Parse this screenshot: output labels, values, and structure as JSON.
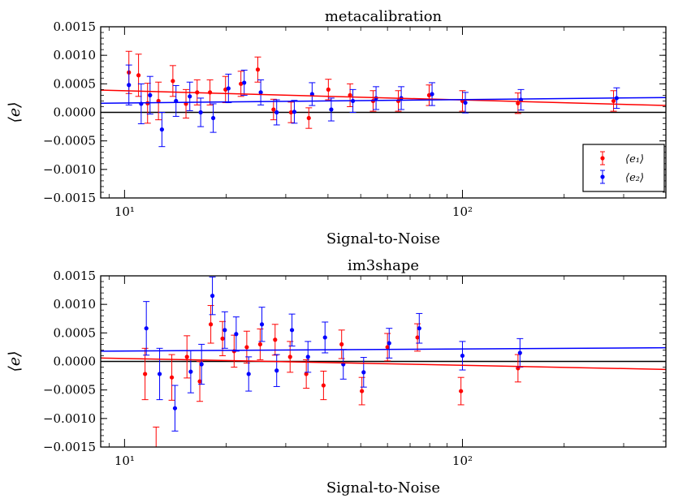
{
  "chart_data": [
    {
      "type": "scatter",
      "title": "metacalibration",
      "xlabel": "Signal-to-Noise",
      "ylabel": "⟨e⟩",
      "xscale": "log",
      "xlim": [
        8.5,
        400
      ],
      "ylim": [
        -0.0015,
        0.0015
      ],
      "xticks": [
        {
          "value": 10,
          "label": "10¹"
        },
        {
          "value": 100,
          "label": "10²"
        }
      ],
      "yticks": [
        {
          "value": 0.0015,
          "label": "0.0015"
        },
        {
          "value": 0.001,
          "label": "0.0010"
        },
        {
          "value": 0.0005,
          "label": "0.0005"
        },
        {
          "value": 0,
          "label": "0.0000"
        },
        {
          "value": -0.0005,
          "label": "−0.0005"
        },
        {
          "value": -0.001,
          "label": "−0.0010"
        },
        {
          "value": -0.0015,
          "label": "−0.0015"
        }
      ],
      "legend": {
        "placement": "lower-right",
        "entries": [
          {
            "series": 0,
            "label": "⟨e₁⟩"
          },
          {
            "series": 1,
            "label": "⟨e₂⟩"
          }
        ]
      },
      "series": [
        {
          "name": "⟨e₁⟩",
          "color": "#ff0000",
          "x": [
            10.3,
            11.0,
            11.7,
            12.6,
            13.9,
            15.2,
            16.4,
            17.9,
            19.9,
            22.1,
            24.8,
            27.6,
            31.1,
            35.1,
            40.1,
            46.5,
            54.4,
            64.6,
            79.7,
            100,
            146,
            280
          ],
          "y": [
            0.0007,
            0.00065,
            0.00016,
            0.0002,
            0.00055,
            0.00015,
            0.00035,
            0.00035,
            0.0004,
            0.0005,
            0.00075,
            5e-05,
            0.0,
            -0.0001,
            0.0004,
            0.0003,
            0.0002,
            0.0002,
            0.0003,
            0.0002,
            0.00016,
            0.0002
          ],
          "err": [
            0.00037,
            0.00037,
            0.00035,
            0.00033,
            0.00027,
            0.00025,
            0.00022,
            0.00022,
            0.00023,
            0.00022,
            0.00022,
            0.00018,
            0.00018,
            0.00018,
            0.00018,
            0.0002,
            0.00018,
            0.00018,
            0.00018,
            0.00018,
            0.00018,
            0.00018
          ],
          "fit": {
            "x": [
              8.5,
              400
            ],
            "y": [
              0.00039,
              0.00012
            ]
          }
        },
        {
          "name": "⟨e₂⟩",
          "color": "#0000ff",
          "x": [
            10.3,
            11.2,
            11.9,
            12.9,
            14.2,
            15.6,
            16.8,
            18.3,
            20.3,
            22.6,
            25.3,
            28.2,
            31.8,
            35.9,
            40.9,
            47.4,
            55.5,
            65.9,
            81.3,
            102,
            149,
            286
          ],
          "y": [
            0.00048,
            0.00015,
            0.0003,
            -0.0003,
            0.0002,
            0.00028,
            0.0,
            -0.0001,
            0.00042,
            0.00052,
            0.00035,
            0.0,
            1e-05,
            0.00032,
            5e-05,
            0.0002,
            0.00025,
            0.00025,
            0.00032,
            0.00017,
            0.00022,
            0.00025
          ],
          "err": [
            0.00035,
            0.00035,
            0.00033,
            0.0003,
            0.00027,
            0.00025,
            0.00025,
            0.00025,
            0.00025,
            0.00022,
            0.00022,
            0.00022,
            0.0002,
            0.0002,
            0.0002,
            0.0002,
            0.0002,
            0.0002,
            0.0002,
            0.00018,
            0.00018,
            0.00018
          ],
          "fit": {
            "x": [
              8.5,
              400
            ],
            "y": [
              0.00016,
              0.00026
            ]
          }
        }
      ],
      "reference_line": {
        "y": 0,
        "color": "#000000"
      }
    },
    {
      "type": "scatter",
      "title": "im3shape",
      "xlabel": "Signal-to-Noise",
      "ylabel": "⟨e⟩",
      "xscale": "log",
      "xlim": [
        8.5,
        400
      ],
      "ylim": [
        -0.0015,
        0.0015
      ],
      "xticks": [
        {
          "value": 10,
          "label": "10¹"
        },
        {
          "value": 100,
          "label": "10²"
        }
      ],
      "yticks": [
        {
          "value": 0.0015,
          "label": "0.0015"
        },
        {
          "value": 0.001,
          "label": "0.0010"
        },
        {
          "value": 0.0005,
          "label": "0.0005"
        },
        {
          "value": 0,
          "label": "0.0000"
        },
        {
          "value": -0.0005,
          "label": "−0.0005"
        },
        {
          "value": -0.001,
          "label": "−0.0010"
        },
        {
          "value": -0.0015,
          "label": "−0.0015"
        }
      ],
      "legend": null,
      "series": [
        {
          "name": "⟨e₁⟩",
          "color": "#ff0000",
          "x": [
            11.5,
            12.4,
            13.8,
            15.3,
            16.7,
            18.0,
            19.5,
            21.1,
            23.0,
            25.2,
            27.9,
            30.9,
            34.5,
            38.8,
            43.9,
            50.4,
            60.0,
            73.6,
            99.0,
            146
          ],
          "y": [
            -0.00022,
            -0.0017,
            -0.00028,
            8e-05,
            -0.00035,
            0.00065,
            0.0004,
            0.00018,
            0.00025,
            0.0003,
            0.00038,
            8e-05,
            -0.00022,
            -0.00042,
            0.0003,
            -0.00052,
            0.00025,
            0.00042,
            -0.00052,
            -0.00012
          ],
          "err": [
            0.00045,
            0.00055,
            0.0004,
            0.00037,
            0.00035,
            0.00033,
            0.0003,
            0.00028,
            0.00028,
            0.00027,
            0.00027,
            0.00027,
            0.00025,
            0.00025,
            0.00025,
            0.00024,
            0.00024,
            0.00024,
            0.00024,
            0.00024
          ],
          "fit": {
            "x": [
              8.5,
              400
            ],
            "y": [
              6e-05,
              -0.00014
            ]
          }
        },
        {
          "name": "⟨e₂⟩",
          "color": "#0000ff",
          "x": [
            11.6,
            12.7,
            14.1,
            15.7,
            16.9,
            18.2,
            19.8,
            21.4,
            23.3,
            25.5,
            28.2,
            31.3,
            34.9,
            39.2,
            44.4,
            51.0,
            60.7,
            74.5,
            100,
            148
          ],
          "y": [
            0.00058,
            -0.00022,
            -0.00082,
            -0.00018,
            -5e-05,
            0.00115,
            0.00055,
            0.00048,
            -0.00022,
            0.00065,
            -0.00016,
            0.00055,
            8e-05,
            0.00042,
            -5e-05,
            -0.00019,
            0.00032,
            0.00058,
            0.0001,
            0.00015
          ],
          "err": [
            0.00047,
            0.00045,
            0.0004,
            0.00037,
            0.00035,
            0.00033,
            0.00032,
            0.0003,
            0.0003,
            0.0003,
            0.00028,
            0.00028,
            0.00027,
            0.00027,
            0.00026,
            0.00026,
            0.00026,
            0.00026,
            0.00025,
            0.00025
          ],
          "fit": {
            "x": [
              8.5,
              400
            ],
            "y": [
              0.00018,
              0.00024
            ]
          }
        }
      ],
      "reference_line": {
        "y": 0,
        "color": "#000000"
      }
    }
  ]
}
